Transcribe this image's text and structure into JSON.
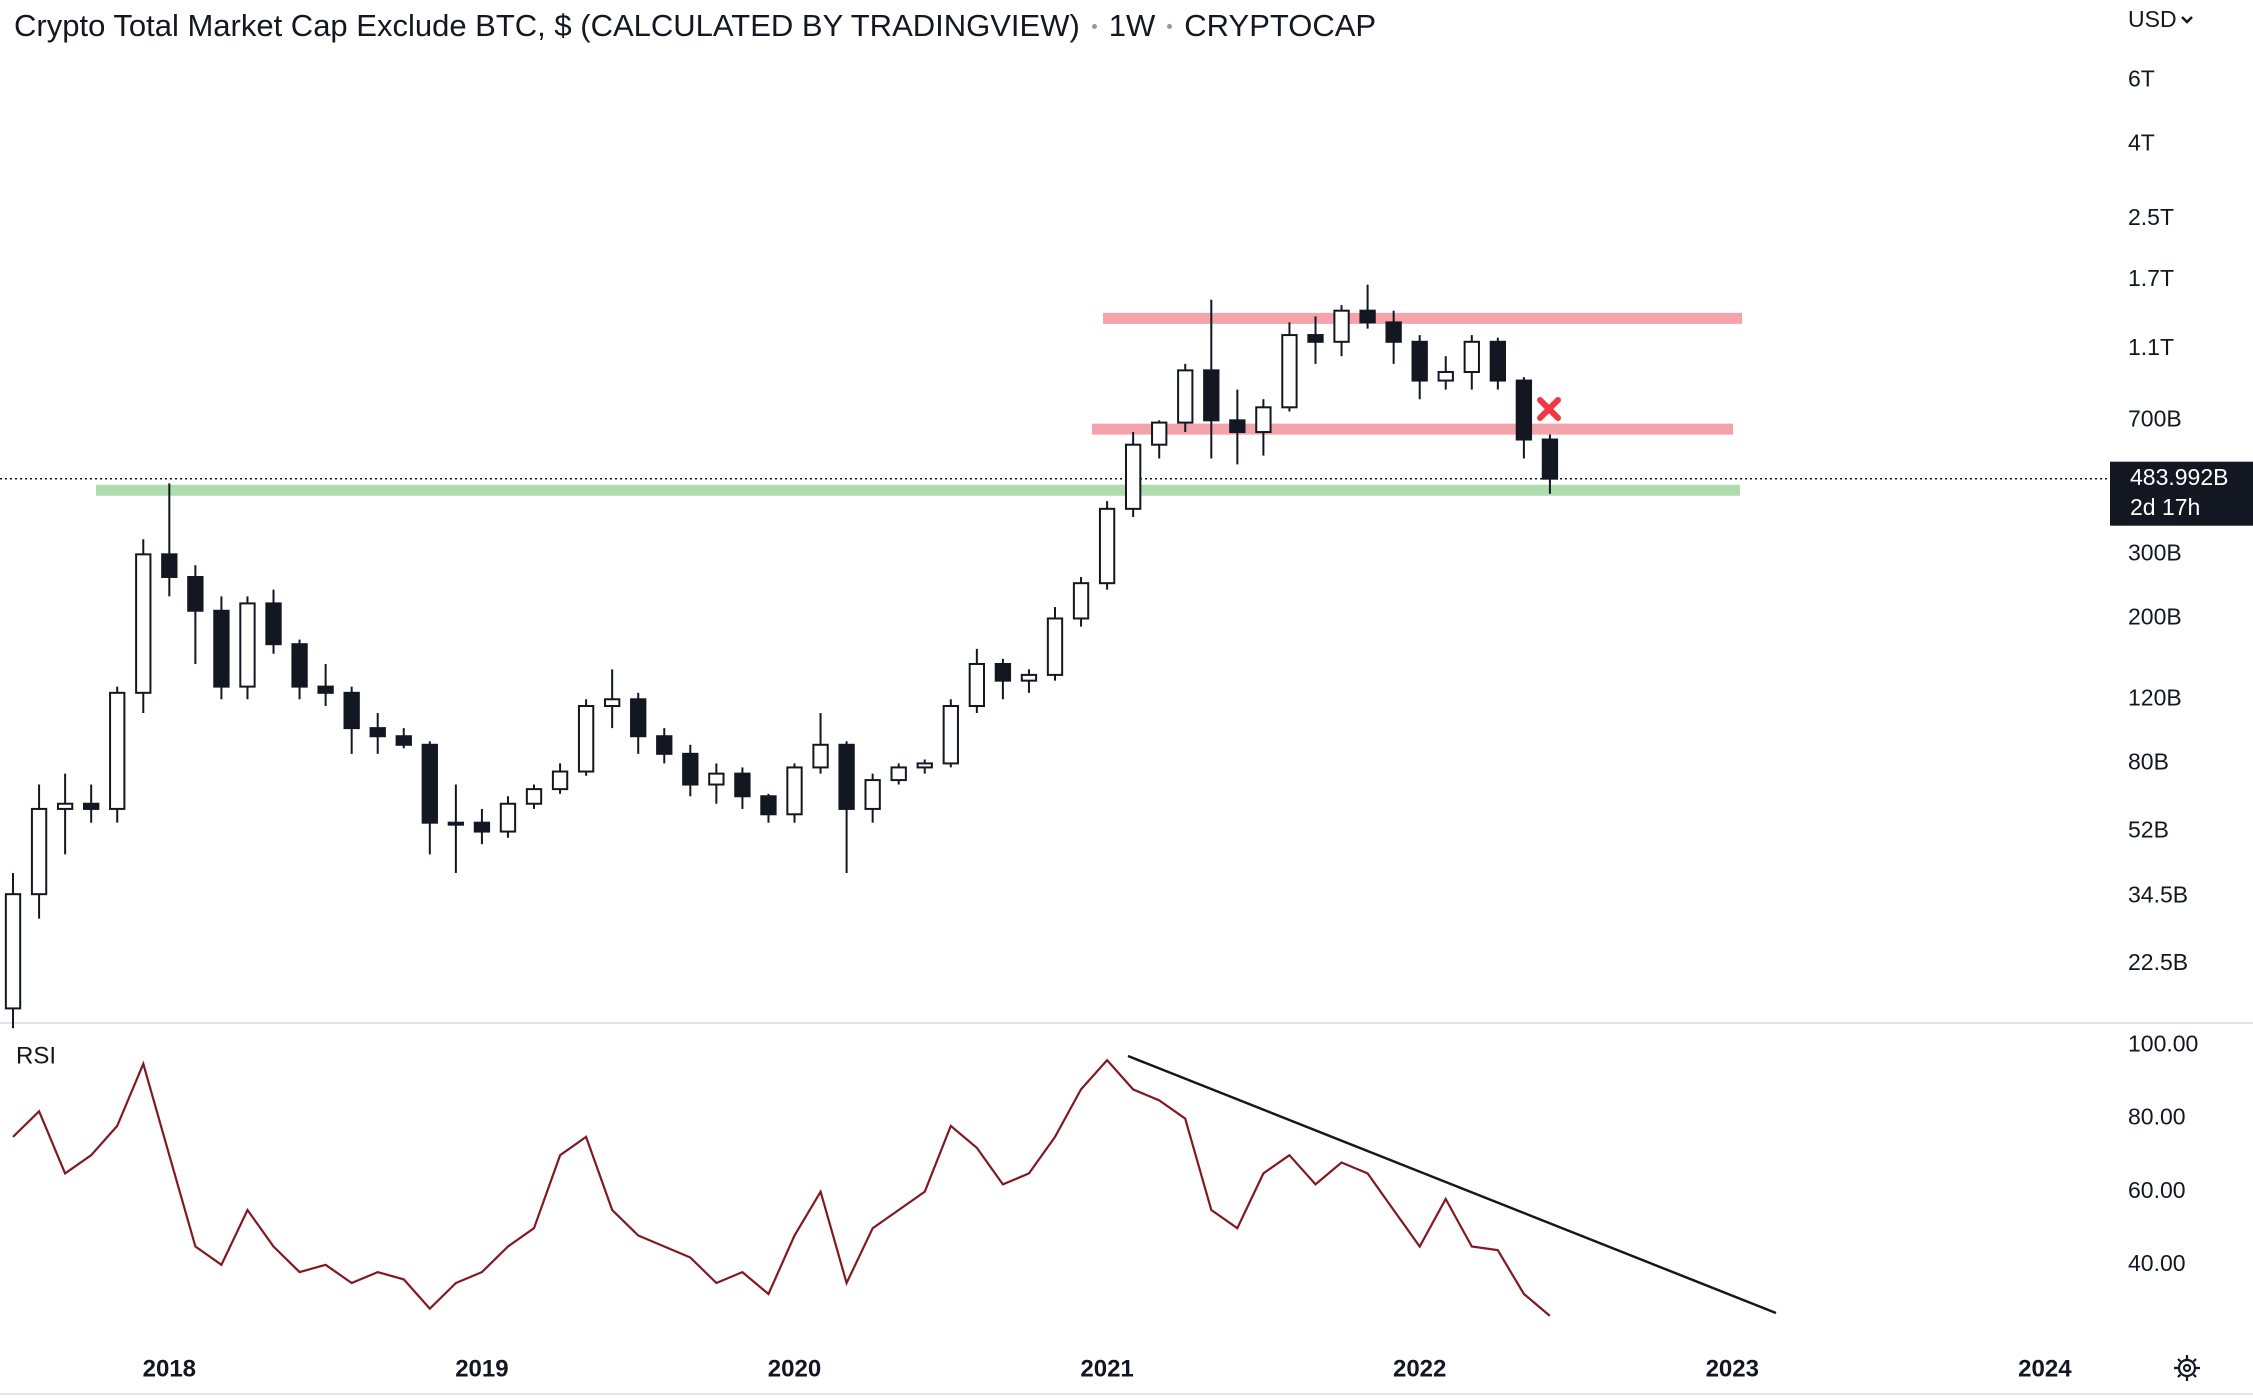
{
  "chart_data": [
    {
      "type": "candlestick",
      "title": "Crypto Total Market Cap Exclude BTC, $ (CALCULATED BY TRADINGVIEW)",
      "interval": "1W",
      "symbol": "CRYPTOCAP",
      "currency": "USD",
      "log_scale": true,
      "grid": false,
      "categories": [
        null,
        null,
        null,
        null,
        null,
        null,
        "2018",
        null,
        null,
        null,
        null,
        null,
        null,
        null,
        null,
        null,
        null,
        null,
        "2019",
        null,
        null,
        null,
        null,
        null,
        null,
        null,
        null,
        null,
        null,
        null,
        "2020",
        null,
        null,
        null,
        null,
        null,
        null,
        null,
        null,
        null,
        null,
        null,
        "2021",
        null,
        null,
        null,
        null,
        null,
        null,
        null,
        null,
        null,
        null,
        null,
        "2022",
        null,
        null,
        null,
        null,
        null,
        null,
        null,
        null,
        null,
        null,
        null,
        "2023",
        null,
        null,
        null,
        null,
        null,
        null,
        null,
        null,
        null,
        null,
        null,
        "2024",
        null,
        null
      ],
      "open": [
        17,
        35,
        60,
        62,
        60,
        125,
        300,
        260,
        210,
        130,
        220,
        170,
        130,
        125,
        100,
        95,
        90,
        55,
        55,
        52,
        62,
        68,
        76,
        115,
        120,
        95,
        85,
        70,
        75,
        65,
        58,
        78,
        90,
        60,
        72,
        78,
        80,
        115,
        150,
        135,
        140,
        200,
        250,
        400,
        600,
        690,
        960,
        700,
        650,
        760,
        1200,
        1150,
        1400,
        1300,
        1150,
        900,
        950,
        1150,
        900,
        620,
        null,
        null,
        null,
        null,
        null,
        null,
        null,
        null,
        null,
        null,
        null,
        null,
        null,
        null,
        null,
        null,
        null,
        null,
        null,
        null,
        null
      ],
      "high": [
        40,
        70,
        75,
        70,
        130,
        330,
        470,
        280,
        230,
        230,
        240,
        175,
        150,
        130,
        110,
        100,
        92,
        70,
        60,
        65,
        70,
        80,
        120,
        145,
        125,
        100,
        90,
        80,
        78,
        66,
        80,
        110,
        92,
        75,
        80,
        82,
        120,
        165,
        155,
        145,
        215,
        260,
        420,
        650,
        700,
        1000,
        1500,
        850,
        800,
        1300,
        1350,
        1450,
        1650,
        1400,
        1200,
        1050,
        1200,
        1180,
        920,
        640,
        null,
        null,
        null,
        null,
        null,
        null,
        null,
        null,
        null,
        null,
        null,
        null,
        null,
        null,
        null,
        null,
        null,
        null,
        null,
        null,
        null
      ],
      "low": [
        15,
        30,
        45,
        55,
        55,
        110,
        230,
        150,
        120,
        120,
        160,
        120,
        115,
        85,
        85,
        88,
        45,
        40,
        48,
        50,
        60,
        66,
        74,
        100,
        85,
        80,
        65,
        62,
        60,
        55,
        55,
        75,
        40,
        55,
        70,
        75,
        78,
        110,
        120,
        125,
        135,
        190,
        240,
        380,
        550,
        650,
        550,
        530,
        560,
        740,
        1000,
        1050,
        1250,
        1000,
        800,
        850,
        850,
        850,
        550,
        440,
        null,
        null,
        null,
        null,
        null,
        null,
        null,
        null,
        null,
        null,
        null,
        null,
        null,
        null,
        null,
        null,
        null,
        null,
        null,
        null,
        null
      ],
      "close": [
        35,
        60,
        62,
        60,
        125,
        300,
        260,
        210,
        130,
        220,
        170,
        130,
        125,
        100,
        95,
        90,
        55,
        55,
        52,
        62,
        68,
        76,
        115,
        120,
        95,
        85,
        70,
        75,
        65,
        58,
        78,
        90,
        60,
        72,
        78,
        80,
        115,
        150,
        135,
        140,
        200,
        250,
        400,
        600,
        690,
        960,
        700,
        650,
        760,
        1200,
        1150,
        1400,
        1300,
        1150,
        900,
        950,
        1150,
        900,
        620,
        484,
        null,
        null,
        null,
        null,
        null,
        null,
        null,
        null,
        null,
        null,
        null,
        null,
        null,
        null,
        null,
        null,
        null,
        null,
        null,
        null,
        null
      ],
      "ylim": [
        15.6,
        9980
      ],
      "yticks": [
        {
          "value": 6000,
          "label": "6T"
        },
        {
          "value": 4000,
          "label": "4T"
        },
        {
          "value": 2500,
          "label": "2.5T"
        },
        {
          "value": 1700,
          "label": "1.7T"
        },
        {
          "value": 1100,
          "label": "1.1T"
        },
        {
          "value": 700,
          "label": "700B"
        },
        {
          "value": 300,
          "label": "300B"
        },
        {
          "value": 200,
          "label": "200B"
        },
        {
          "value": 120,
          "label": "120B"
        },
        {
          "value": 80,
          "label": "80B"
        },
        {
          "value": 52,
          "label": "52B"
        },
        {
          "value": 34.5,
          "label": "34.5B"
        },
        {
          "value": 22.5,
          "label": "22.5B"
        }
      ],
      "last_price": {
        "value": 483.992,
        "label": "483.992B"
      },
      "countdown": "2d 17h",
      "levels": [
        {
          "value": 1334,
          "color": "#f5a3ab"
        },
        {
          "value": 662,
          "color": "#f5a3ab"
        },
        {
          "value": 450,
          "color": "#aedcae"
        }
      ]
    },
    {
      "type": "line",
      "title": "RSI",
      "color": "#801922",
      "values": [
        75,
        82,
        65,
        70,
        78,
        95,
        70,
        45,
        40,
        55,
        45,
        38,
        40,
        35,
        38,
        36,
        28,
        35,
        38,
        45,
        50,
        70,
        75,
        55,
        48,
        45,
        42,
        35,
        38,
        32,
        48,
        60,
        35,
        50,
        55,
        60,
        78,
        72,
        62,
        65,
        75,
        88,
        96,
        88,
        85,
        80,
        55,
        50,
        65,
        70,
        62,
        68,
        65,
        55,
        45,
        58,
        45,
        44,
        32,
        26,
        null,
        null,
        null,
        null,
        null,
        null,
        null,
        null,
        null,
        null,
        null,
        null,
        null,
        null,
        null,
        null,
        null,
        null,
        null,
        null,
        null
      ],
      "ylim": [
        16.4,
        105.9
      ],
      "yticks": [
        {
          "value": 100,
          "label": "100.00"
        },
        {
          "value": 80,
          "label": "80.00"
        },
        {
          "value": 60,
          "label": "60.00"
        },
        {
          "value": 40,
          "label": "40.00"
        }
      ]
    }
  ]
}
